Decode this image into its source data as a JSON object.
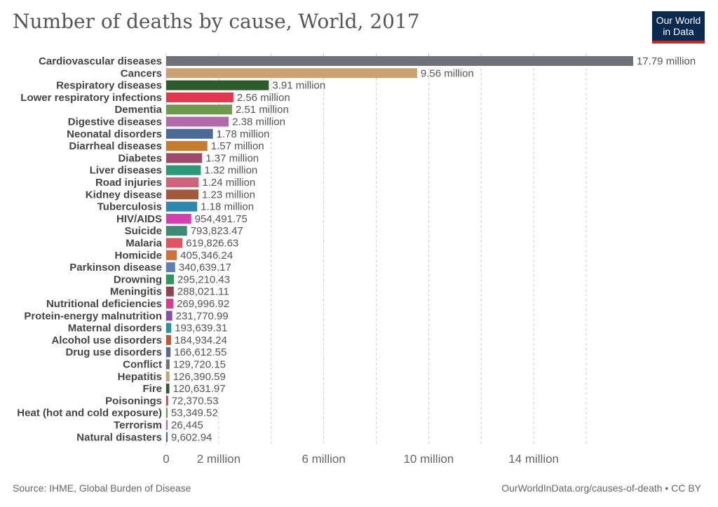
{
  "title": "Number of deaths by cause, World, 2017",
  "logo": {
    "line1": "Our World",
    "line2": "in Data"
  },
  "source": "Source: IHME, Global Burden of Disease",
  "credit": "OurWorldInData.org/causes-of-death • CC BY",
  "chart_data": {
    "type": "bar",
    "orientation": "horizontal",
    "title": "Number of deaths by cause, World, 2017",
    "xlim": [
      0,
      17790000
    ],
    "grid": true,
    "xticks": [
      {
        "value": 0,
        "label": "0"
      },
      {
        "value": 2000000,
        "label": "2 million"
      },
      {
        "value": 6000000,
        "label": "6 million"
      },
      {
        "value": 10000000,
        "label": "10 million"
      },
      {
        "value": 14000000,
        "label": "14 million"
      }
    ],
    "gridlines": [
      0,
      2000000,
      4000000,
      6000000,
      8000000,
      10000000,
      12000000,
      14000000,
      16000000
    ],
    "bars": [
      {
        "category": "Cardiovascular diseases",
        "value": 17790000,
        "label": "17.79 million",
        "color": "#6e7278"
      },
      {
        "category": "Cancers",
        "value": 9560000,
        "label": "9.56 million",
        "color": "#c8a26f"
      },
      {
        "category": "Respiratory diseases",
        "value": 3910000,
        "label": "3.91 million",
        "color": "#2d5b2a"
      },
      {
        "category": "Lower respiratory infections",
        "value": 2560000,
        "label": "2.56 million",
        "color": "#e0384f"
      },
      {
        "category": "Dementia",
        "value": 2510000,
        "label": "2.51 million",
        "color": "#6d9a4f"
      },
      {
        "category": "Digestive diseases",
        "value": 2380000,
        "label": "2.38 million",
        "color": "#b36aa8"
      },
      {
        "category": "Neonatal disorders",
        "value": 1780000,
        "label": "1.78 million",
        "color": "#4a6b95"
      },
      {
        "category": "Diarrheal diseases",
        "value": 1570000,
        "label": "1.57 million",
        "color": "#c67a30"
      },
      {
        "category": "Diabetes",
        "value": 1370000,
        "label": "1.37 million",
        "color": "#9e4a6d"
      },
      {
        "category": "Liver diseases",
        "value": 1320000,
        "label": "1.32 million",
        "color": "#279a78"
      },
      {
        "category": "Road injuries",
        "value": 1240000,
        "label": "1.24 million",
        "color": "#d0637c"
      },
      {
        "category": "Kidney disease",
        "value": 1230000,
        "label": "1.23 million",
        "color": "#a35a3b"
      },
      {
        "category": "Tuberculosis",
        "value": 1180000,
        "label": "1.18 million",
        "color": "#2c88b0"
      },
      {
        "category": "HIV/AIDS",
        "value": 954491.75,
        "label": "954,491.75",
        "color": "#d63fae"
      },
      {
        "category": "Suicide",
        "value": 793823.47,
        "label": "793,823.47",
        "color": "#3e8a76"
      },
      {
        "category": "Malaria",
        "value": 619826.63,
        "label": "619,826.63",
        "color": "#e05262"
      },
      {
        "category": "Homicide",
        "value": 405346.24,
        "label": "405,346.24",
        "color": "#d0723a"
      },
      {
        "category": "Parkinson disease",
        "value": 340639.17,
        "label": "340,639.17",
        "color": "#5a7eb8"
      },
      {
        "category": "Drowning",
        "value": 295210.43,
        "label": "295,210.43",
        "color": "#2a9a5a"
      },
      {
        "category": "Meningitis",
        "value": 288021.11,
        "label": "288,021.11",
        "color": "#94404e"
      },
      {
        "category": "Nutritional deficiencies",
        "value": 269996.92,
        "label": "269,996.92",
        "color": "#d83c8a"
      },
      {
        "category": "Protein-energy malnutrition",
        "value": 231770.99,
        "label": "231,770.99",
        "color": "#8451a8"
      },
      {
        "category": "Maternal disorders",
        "value": 193639.31,
        "label": "193,639.31",
        "color": "#1f9a9a"
      },
      {
        "category": "Alcohol use disorders",
        "value": 184934.24,
        "label": "184,934.24",
        "color": "#c9542c"
      },
      {
        "category": "Drug use disorders",
        "value": 166612.55,
        "label": "166,612.55",
        "color": "#5a6a8a"
      },
      {
        "category": "Conflict",
        "value": 129720.15,
        "label": "129,720.15",
        "color": "#6e7278"
      },
      {
        "category": "Hepatitis",
        "value": 126390.59,
        "label": "126,390.59",
        "color": "#c8a26f"
      },
      {
        "category": "Fire",
        "value": 120631.97,
        "label": "120,631.97",
        "color": "#2d5b2a"
      },
      {
        "category": "Poisonings",
        "value": 72370.53,
        "label": "72,370.53",
        "color": "#e0384f"
      },
      {
        "category": "Heat (hot and cold exposure)",
        "value": 53349.52,
        "label": "53,349.52",
        "color": "#6d9a4f"
      },
      {
        "category": "Terrorism",
        "value": 26445,
        "label": "26,445",
        "color": "#b36aa8"
      },
      {
        "category": "Natural disasters",
        "value": 9602.94,
        "label": "9,602.94",
        "color": "#4a6b95"
      }
    ]
  }
}
